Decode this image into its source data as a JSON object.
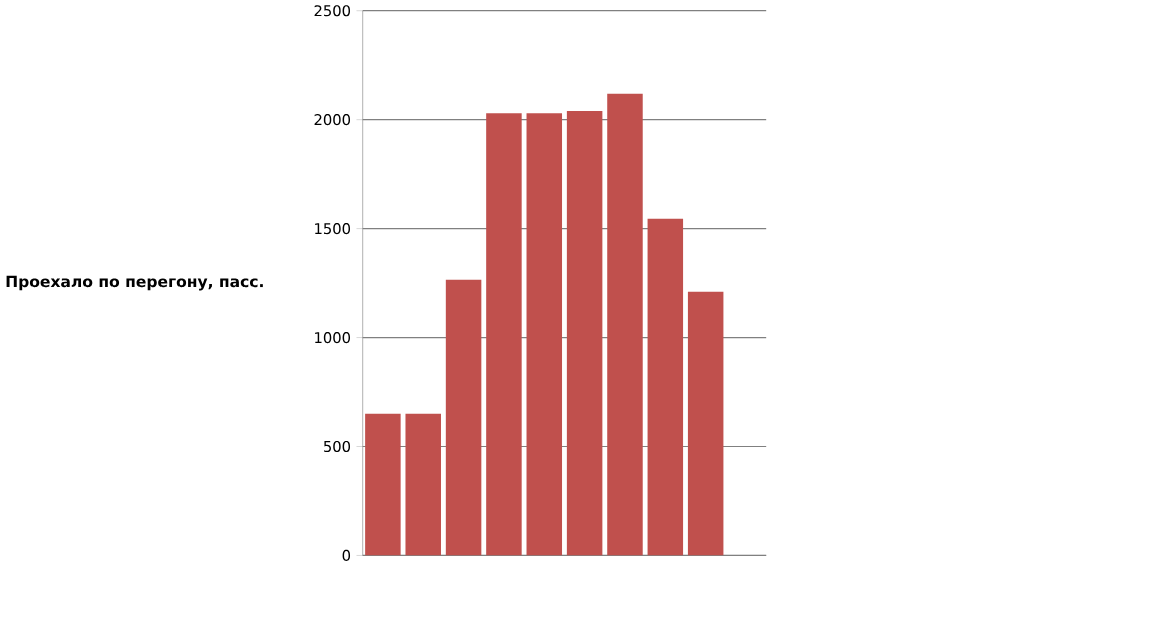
{
  "chart_data": {
    "type": "bar",
    "ylabel": "Проехало по перегону, пасс.",
    "categories": [
      null,
      null,
      null,
      null,
      null,
      null,
      null,
      null,
      null,
      null
    ],
    "values": [
      650,
      650,
      1265,
      2030,
      2030,
      2040,
      2120,
      1545,
      1210,
      null
    ],
    "color": "#c0504d",
    "ylim": [
      0,
      2500
    ],
    "yticks": [
      0,
      500,
      1000,
      1500,
      2000,
      2500
    ],
    "grid": "y"
  }
}
